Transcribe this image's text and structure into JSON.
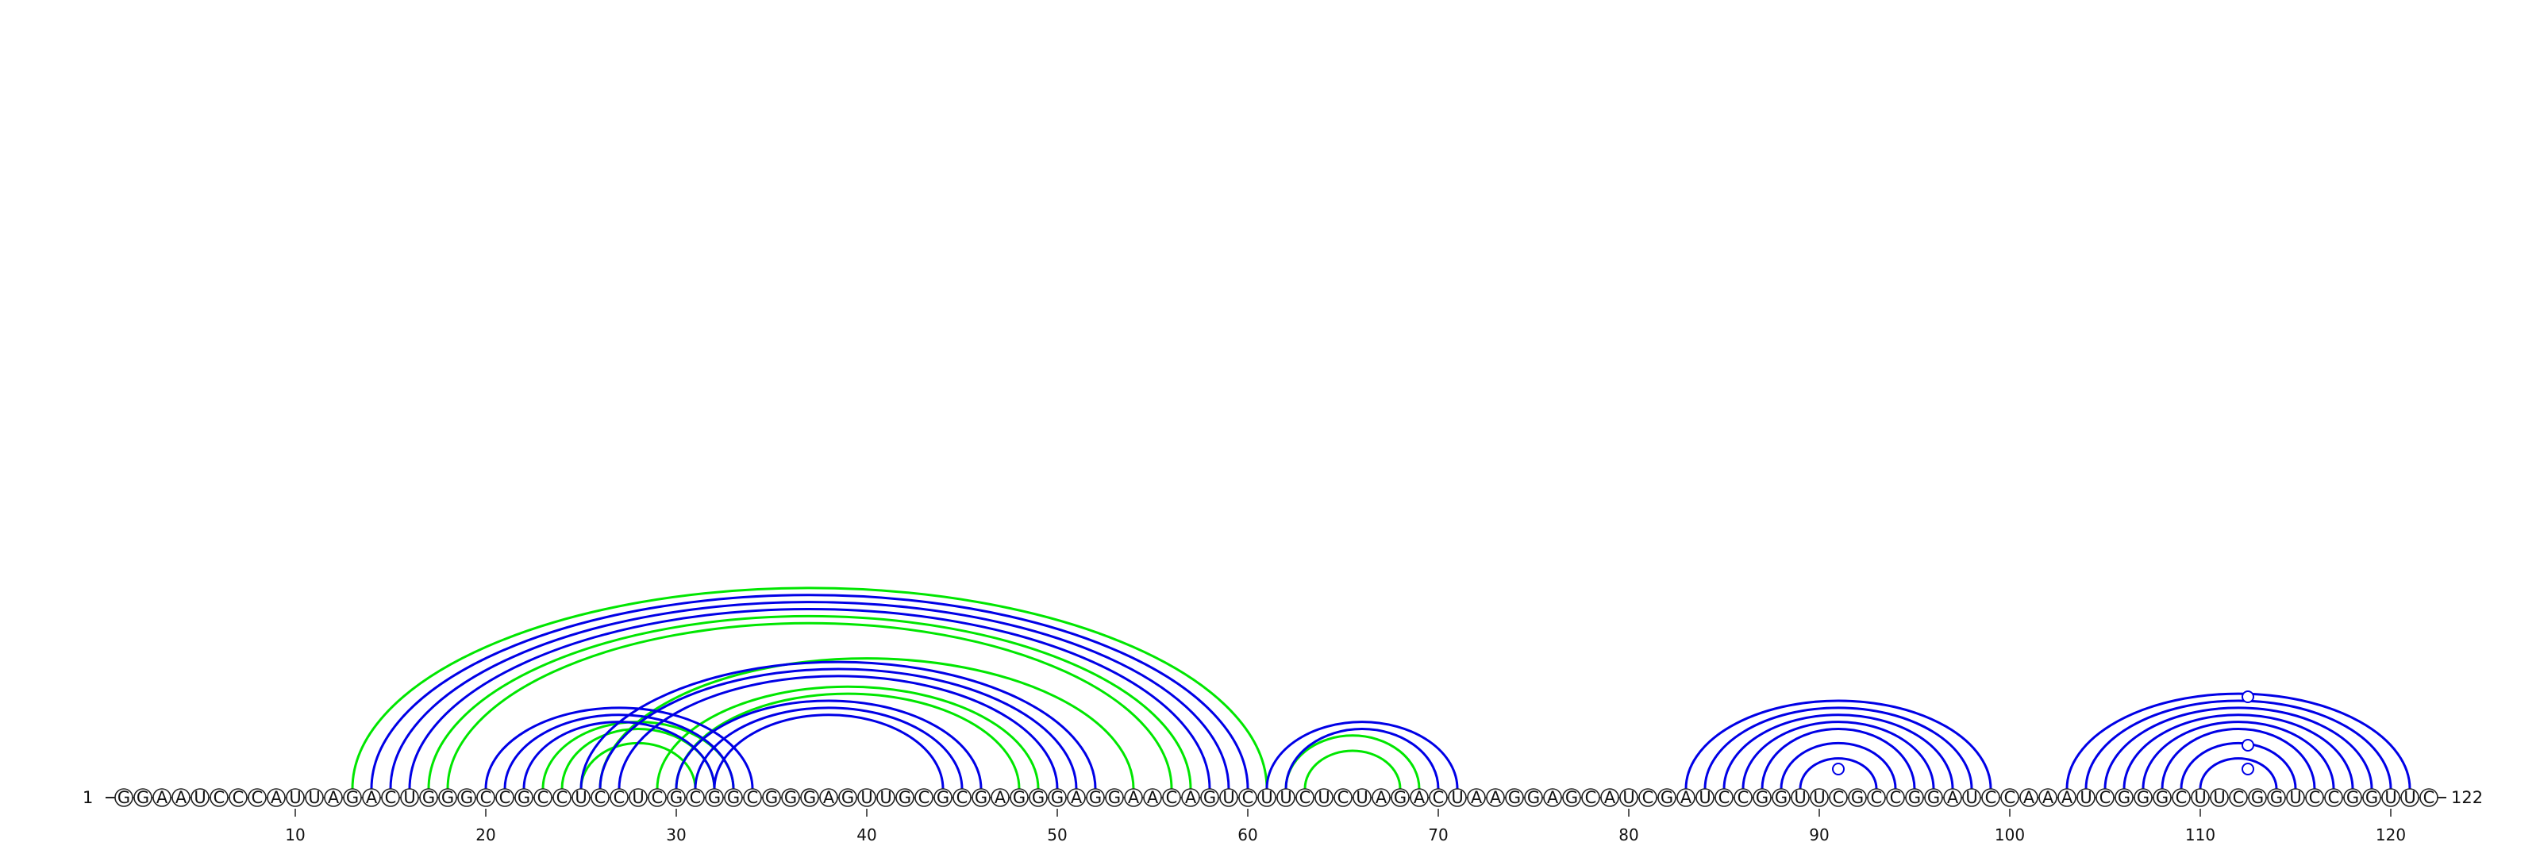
{
  "sequence": "GGAAUCCCAUUAGACUGGGCCGCCUCCUCGCGGCGGGAGUUGCGCGAGGGAGGAACAGUCUUCUCUAGACUAAGGAGCAUCGAUCCGGUUCGCCGGAUCCAAAUCGGGCUUCGGUCCGGUUC",
  "start_label": "1",
  "end_label": "122",
  "tick_positions": [
    10,
    20,
    30,
    40,
    50,
    60,
    70,
    80,
    90,
    100,
    110,
    120
  ],
  "colors": {
    "primary": "#0000e6",
    "secondary": "#00e600",
    "backbone": "#222222"
  },
  "primary_pairs": [
    [
      14,
      60
    ],
    [
      15,
      59
    ],
    [
      16,
      58
    ],
    [
      20,
      34
    ],
    [
      21,
      33
    ],
    [
      22,
      32
    ],
    [
      25,
      52
    ],
    [
      26,
      51
    ],
    [
      27,
      50
    ],
    [
      30,
      46
    ],
    [
      31,
      45
    ],
    [
      32,
      44
    ],
    [
      61,
      71
    ],
    [
      62,
      70
    ],
    [
      83,
      99
    ],
    [
      84,
      98
    ],
    [
      85,
      97
    ],
    [
      86,
      96
    ],
    [
      87,
      95
    ],
    [
      88,
      94
    ],
    [
      89,
      93
    ],
    [
      103,
      121
    ],
    [
      104,
      120
    ],
    [
      105,
      119
    ],
    [
      106,
      118
    ],
    [
      107,
      117
    ],
    [
      108,
      116
    ],
    [
      109,
      115
    ],
    [
      110,
      114
    ]
  ],
  "secondary_pairs": [
    [
      13,
      61
    ],
    [
      17,
      57
    ],
    [
      18,
      56
    ],
    [
      23,
      33
    ],
    [
      24,
      32
    ],
    [
      25,
      31
    ],
    [
      26,
      54
    ],
    [
      29,
      49
    ],
    [
      30,
      48
    ],
    [
      62,
      69
    ],
    [
      63,
      68
    ]
  ],
  "unpaired_markers": [
    91,
    112
  ]
}
